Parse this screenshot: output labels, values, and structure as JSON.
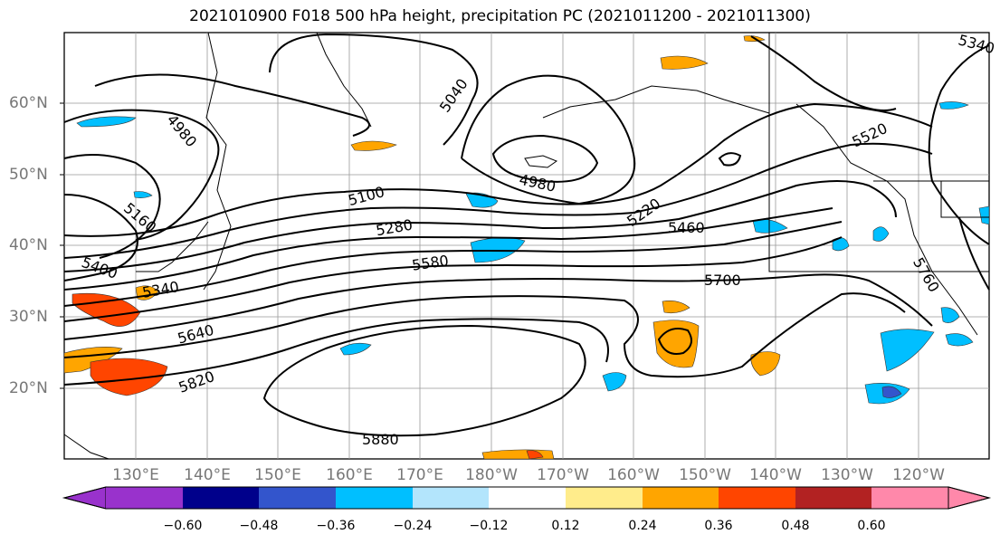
{
  "title": "2021010900 F018 500 hPa height, precipitation PC (2021011200 - 2021011300)",
  "map": {
    "lat_labels": [
      "60°N",
      "50°N",
      "40°N",
      "30°N",
      "20°N"
    ],
    "lon_labels": [
      "130°E",
      "140°E",
      "150°E",
      "160°E",
      "170°E",
      "180°W",
      "170°W",
      "160°W",
      "150°W",
      "140°W",
      "130°W",
      "120°W"
    ],
    "contour_labels": [
      "4980",
      "5040",
      "4980",
      "5100",
      "5280",
      "5220",
      "5460",
      "5580",
      "5700",
      "5160",
      "5400",
      "5340",
      "5640",
      "5820",
      "5880",
      "5520",
      "5760",
      "5340"
    ],
    "line_color": "#000000",
    "grid_color": "#999999"
  },
  "colorbar": {
    "colors": [
      "#9932cc",
      "#00008b",
      "#3355cc",
      "#00bfff",
      "#b3e5fc",
      "#ffffff",
      "#ffec8b",
      "#ffa500",
      "#ff4500",
      "#b22222",
      "#ff88aa"
    ],
    "tick_labels": [
      "−0.60",
      "−0.48",
      "−0.36",
      "−0.24",
      "−0.12",
      "0.12",
      "0.24",
      "0.36",
      "0.48",
      "0.60"
    ]
  }
}
